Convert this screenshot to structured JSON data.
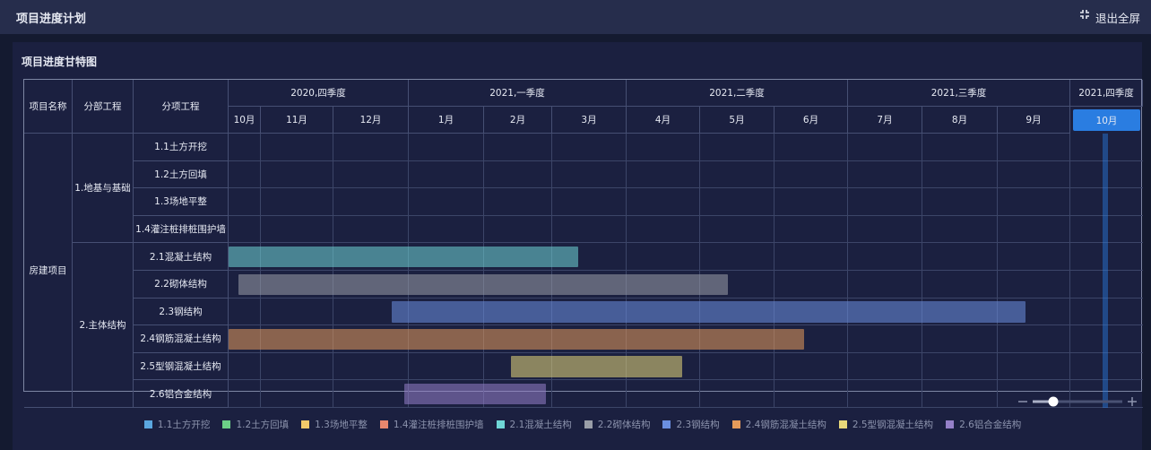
{
  "header": {
    "title": "项目进度计划",
    "exit": "退出全屏"
  },
  "panel_title": "项目进度甘特图",
  "columns": [
    "项目名称",
    "分部工程",
    "分项工程"
  ],
  "quarters": [
    {
      "label": "2020,四季度",
      "months": [
        "10月",
        "11月",
        "12月"
      ]
    },
    {
      "label": "2021,一季度",
      "months": [
        "1月",
        "2月",
        "3月"
      ]
    },
    {
      "label": "2021,二季度",
      "months": [
        "4月",
        "5月",
        "6月"
      ]
    },
    {
      "label": "2021,三季度",
      "months": [
        "7月",
        "8月",
        "9月"
      ]
    },
    {
      "label": "2021,四季度",
      "months": [
        "10月"
      ]
    }
  ],
  "project": "房建项目",
  "groups": [
    {
      "name": "1.地基与基础",
      "items": [
        "1.1土方开挖",
        "1.2土方回填",
        "1.3场地平整",
        "1.4灌注桩排桩围护墙"
      ]
    },
    {
      "name": "2.主体结构",
      "items": [
        "2.1混凝土结构",
        "2.2砌体结构",
        "2.3钢结构",
        "2.4钢筋混凝土结构",
        "2.5型钢混凝土结构",
        "2.6铝合金结构"
      ]
    }
  ],
  "legend": [
    {
      "label": "1.1土方开挖",
      "color": "#5ba7e0"
    },
    {
      "label": "1.2土方回填",
      "color": "#6ccf87"
    },
    {
      "label": "1.3场地平整",
      "color": "#f2c96a"
    },
    {
      "label": "1.4灌注桩排桩围护墙",
      "color": "#e8876e"
    },
    {
      "label": "2.1混凝土结构",
      "color": "#6fd6d6",
      "start": 0,
      "end": 5.35
    },
    {
      "label": "2.2砌体结构",
      "color": "#9a9ea8",
      "start": 0.3,
      "end": 7.37
    },
    {
      "label": "2.3钢结构",
      "color": "#6b8fe0",
      "start": 2.77,
      "end": 11.38
    },
    {
      "label": "2.4钢筋混凝土结构",
      "color": "#e59a5a",
      "start": 0,
      "end": 8.4
    },
    {
      "label": "2.5型钢混凝土结构",
      "color": "#e8d87a",
      "start": 4.39,
      "end": 6.76
    },
    {
      "label": "2.6铝合金结构",
      "color": "#9580c8",
      "start": 2.94,
      "end": 4.91
    }
  ]
}
